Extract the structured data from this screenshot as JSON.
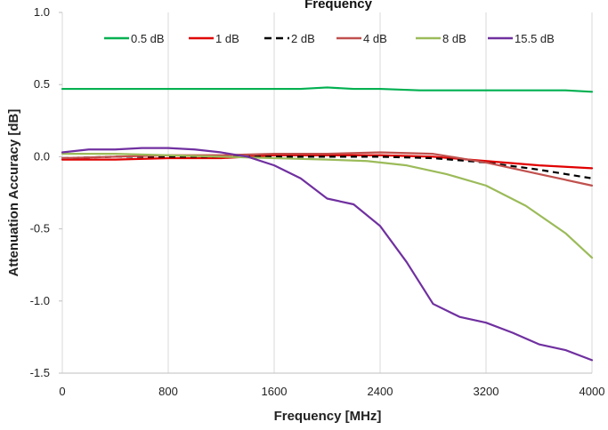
{
  "chart_data": {
    "type": "line",
    "title": "Frequency",
    "xlabel": "Frequency [MHz]",
    "ylabel": "Attenuation Accuracy [dB]",
    "xlim": [
      0,
      4000
    ],
    "ylim": [
      -1.5,
      1.0
    ],
    "x_ticks": [
      0,
      800,
      1600,
      2400,
      3200,
      4000
    ],
    "x_tick_labels": [
      "0",
      "800",
      "1600",
      "2400",
      "3200",
      "4000"
    ],
    "y_ticks": [
      -1.5,
      -1.0,
      -0.5,
      0.0,
      0.5,
      1.0
    ],
    "y_tick_labels": [
      "-1.5",
      "-1.0",
      "-0.5",
      "0.0",
      "0.5",
      "1.0"
    ],
    "grid": "vertical",
    "legend_position": "top",
    "series": [
      {
        "name": "0.5 dB",
        "color": "#00b050",
        "dash": "solid",
        "points": [
          [
            0,
            0.47
          ],
          [
            400,
            0.47
          ],
          [
            800,
            0.47
          ],
          [
            1200,
            0.47
          ],
          [
            1600,
            0.47
          ],
          [
            1800,
            0.47
          ],
          [
            2000,
            0.48
          ],
          [
            2200,
            0.47
          ],
          [
            2400,
            0.47
          ],
          [
            2700,
            0.46
          ],
          [
            3200,
            0.46
          ],
          [
            3600,
            0.46
          ],
          [
            3800,
            0.46
          ],
          [
            4000,
            0.45
          ]
        ]
      },
      {
        "name": "1 dB",
        "color": "#e00000",
        "dash": "solid",
        "points": [
          [
            0,
            -0.02
          ],
          [
            400,
            -0.02
          ],
          [
            800,
            -0.01
          ],
          [
            1200,
            -0.01
          ],
          [
            1600,
            0.01
          ],
          [
            2000,
            0.01
          ],
          [
            2400,
            0.01
          ],
          [
            2800,
            0.0
          ],
          [
            3200,
            -0.03
          ],
          [
            3600,
            -0.06
          ],
          [
            3800,
            -0.07
          ],
          [
            4000,
            -0.08
          ]
        ]
      },
      {
        "name": "2 dB",
        "color": "#000000",
        "dash": "dashed",
        "points": [
          [
            0,
            -0.01
          ],
          [
            400,
            0.0
          ],
          [
            800,
            0.0
          ],
          [
            1200,
            0.0
          ],
          [
            1600,
            0.0
          ],
          [
            2000,
            0.0
          ],
          [
            2400,
            0.0
          ],
          [
            2800,
            -0.01
          ],
          [
            3200,
            -0.04
          ],
          [
            3600,
            -0.09
          ],
          [
            4000,
            -0.15
          ]
        ]
      },
      {
        "name": "4 dB",
        "color": "#c0504d",
        "dash": "solid",
        "points": [
          [
            0,
            -0.01
          ],
          [
            400,
            0.0
          ],
          [
            800,
            0.01
          ],
          [
            1200,
            0.01
          ],
          [
            1600,
            0.02
          ],
          [
            2000,
            0.02
          ],
          [
            2400,
            0.03
          ],
          [
            2800,
            0.02
          ],
          [
            3200,
            -0.04
          ],
          [
            3600,
            -0.12
          ],
          [
            4000,
            -0.2
          ]
        ]
      },
      {
        "name": "8 dB",
        "color": "#9bbb59",
        "dash": "solid",
        "points": [
          [
            0,
            0.02
          ],
          [
            400,
            0.02
          ],
          [
            800,
            0.01
          ],
          [
            1200,
            0.0
          ],
          [
            1600,
            -0.01
          ],
          [
            2000,
            -0.02
          ],
          [
            2300,
            -0.03
          ],
          [
            2600,
            -0.06
          ],
          [
            2900,
            -0.12
          ],
          [
            3200,
            -0.2
          ],
          [
            3500,
            -0.34
          ],
          [
            3800,
            -0.53
          ],
          [
            4000,
            -0.7
          ]
        ]
      },
      {
        "name": "15.5 dB",
        "color": "#7030a0",
        "dash": "solid",
        "points": [
          [
            0,
            0.03
          ],
          [
            200,
            0.05
          ],
          [
            400,
            0.05
          ],
          [
            600,
            0.06
          ],
          [
            800,
            0.06
          ],
          [
            1000,
            0.05
          ],
          [
            1200,
            0.03
          ],
          [
            1400,
            0.0
          ],
          [
            1600,
            -0.06
          ],
          [
            1800,
            -0.15
          ],
          [
            1900,
            -0.22
          ],
          [
            2000,
            -0.29
          ],
          [
            2200,
            -0.33
          ],
          [
            2400,
            -0.48
          ],
          [
            2600,
            -0.73
          ],
          [
            2800,
            -1.02
          ],
          [
            3000,
            -1.11
          ],
          [
            3200,
            -1.15
          ],
          [
            3400,
            -1.22
          ],
          [
            3600,
            -1.3
          ],
          [
            3800,
            -1.34
          ],
          [
            4000,
            -1.41
          ]
        ]
      }
    ]
  }
}
